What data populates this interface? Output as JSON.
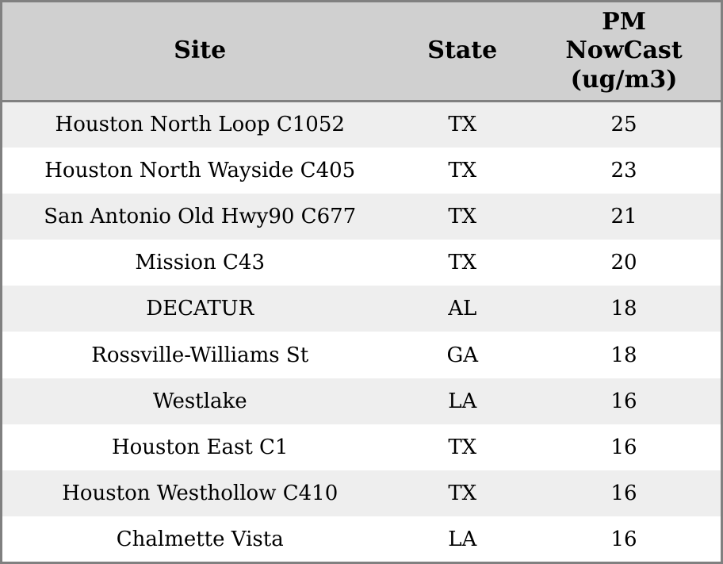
{
  "chart_data": {
    "type": "table",
    "columns": [
      "Site",
      "State",
      "PM NowCast (ug/m3)"
    ],
    "rows": [
      [
        "Houston North Loop C1052",
        "TX",
        25
      ],
      [
        "Houston North Wayside C405",
        "TX",
        23
      ],
      [
        "San Antonio Old Hwy90 C677",
        "TX",
        21
      ],
      [
        "Mission C43",
        "TX",
        20
      ],
      [
        "DECATUR",
        "AL",
        18
      ],
      [
        "Rossville-Williams St",
        "GA",
        18
      ],
      [
        "Westlake",
        "LA",
        16
      ],
      [
        "Houston East C1",
        "TX",
        16
      ],
      [
        "Houston Westhollow C410",
        "TX",
        16
      ],
      [
        "Chalmette Vista",
        "LA",
        16
      ]
    ],
    "layout": {
      "striped": true,
      "header_position": "top",
      "text_align": "center"
    }
  },
  "colors": {
    "outer_border": "#808080",
    "header_bg": "#d0d0d0",
    "header_separator": "#808080",
    "row_stripe_bg": "#eeeeee",
    "row_plain_bg": "#ffffff",
    "text": "#000000"
  }
}
